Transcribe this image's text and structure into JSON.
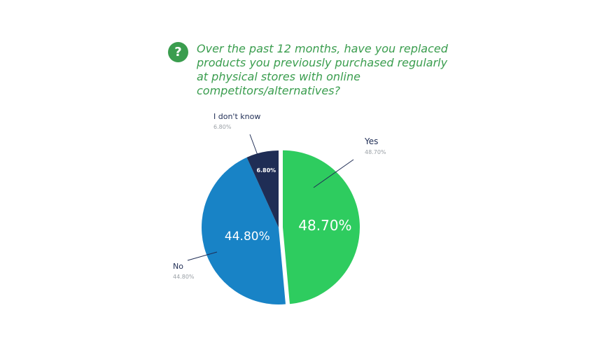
{
  "chart_data": {
    "type": "pie",
    "title": "Over the past 12 months, have you replaced products you previously purchased regularly at physical stores with online competitors/alternatives?",
    "slices": [
      {
        "label": "Yes",
        "value": 48.7,
        "display": "48.70%",
        "color": "#2ecc5f"
      },
      {
        "label": "No",
        "value": 44.8,
        "display": "44.80%",
        "color": "#1883c6"
      },
      {
        "label": "I don't know",
        "value": 6.8,
        "display": "6.80%",
        "color": "#1f2d55"
      }
    ],
    "legend": "none"
  },
  "icons": {
    "title_icon": "question-mark-icon"
  }
}
